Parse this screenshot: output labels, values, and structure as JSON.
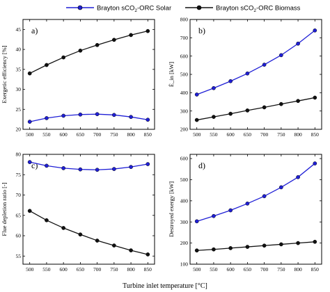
{
  "legend": {
    "solar_prefix": "Brayton sCO",
    "solar_sub": "2",
    "solar_suffix": "-ORC Solar",
    "biomass_prefix": "Brayton sCO",
    "biomass_sub": "2",
    "biomass_suffix": "-ORC Biomass"
  },
  "xlabel": "Turbine inlet temperature [°C]",
  "colors": {
    "solar": "#1f1fd6",
    "biomass": "#111111"
  },
  "chart_data": [
    {
      "type": "line",
      "panel": "a)",
      "ylabel": "Exergetic efficiency [%]",
      "x": [
        500,
        550,
        600,
        650,
        700,
        750,
        800,
        850
      ],
      "xlim": [
        480,
        870
      ],
      "xticks": [
        500,
        550,
        600,
        650,
        700,
        750,
        800,
        850
      ],
      "ylim": [
        20,
        47.5
      ],
      "yticks": [
        20,
        25,
        30,
        35,
        40,
        45
      ],
      "series": [
        {
          "name": "Brayton sCO2-ORC Solar",
          "values": [
            21.9,
            22.8,
            23.4,
            23.7,
            23.8,
            23.6,
            23.1,
            22.4
          ]
        },
        {
          "name": "Brayton sCO2-ORC Biomass",
          "values": [
            34.0,
            36.1,
            38.0,
            39.7,
            41.1,
            42.4,
            43.6,
            44.6
          ]
        }
      ]
    },
    {
      "type": "line",
      "panel": "b)",
      "ylabel": "Ė_in [kW]",
      "x": [
        500,
        550,
        600,
        650,
        700,
        750,
        800,
        850
      ],
      "xlim": [
        480,
        870
      ],
      "xticks": [
        500,
        550,
        600,
        650,
        700,
        750,
        800,
        850
      ],
      "ylim": [
        200,
        800
      ],
      "yticks": [
        200,
        300,
        400,
        500,
        600,
        700,
        800
      ],
      "series": [
        {
          "name": "Brayton sCO2-ORC Solar",
          "values": [
            390,
            425,
            463,
            505,
            553,
            605,
            668,
            740
          ]
        },
        {
          "name": "Brayton sCO2-ORC Biomass",
          "values": [
            251,
            268,
            285,
            303,
            320,
            338,
            355,
            373
          ]
        }
      ]
    },
    {
      "type": "line",
      "panel": "c)",
      "ylabel": "Flue depletion ratio [-]",
      "x": [
        500,
        550,
        600,
        650,
        700,
        750,
        800,
        850
      ],
      "xlim": [
        480,
        870
      ],
      "xticks": [
        500,
        550,
        600,
        650,
        700,
        750,
        800,
        850
      ],
      "ylim": [
        53,
        80
      ],
      "yticks": [
        55,
        60,
        65,
        70,
        75,
        80
      ],
      "series": [
        {
          "name": "Brayton sCO2-ORC Solar",
          "values": [
            78.1,
            77.2,
            76.6,
            76.3,
            76.2,
            76.4,
            76.9,
            77.6
          ]
        },
        {
          "name": "Brayton sCO2-ORC Biomass",
          "values": [
            66.1,
            63.8,
            61.9,
            60.3,
            58.8,
            57.6,
            56.4,
            55.4
          ]
        }
      ]
    },
    {
      "type": "line",
      "panel": "d)",
      "ylabel": "Destroyed exergy [kW]",
      "x": [
        500,
        550,
        600,
        650,
        700,
        750,
        800,
        850
      ],
      "xlim": [
        480,
        870
      ],
      "xticks": [
        500,
        550,
        600,
        650,
        700,
        750,
        800,
        850
      ],
      "ylim": [
        100,
        620
      ],
      "yticks": [
        100,
        200,
        300,
        400,
        500,
        600
      ],
      "series": [
        {
          "name": "Brayton sCO2-ORC Solar",
          "values": [
            303,
            328,
            355,
            387,
            422,
            464,
            512,
            577
          ]
        },
        {
          "name": "Brayton sCO2-ORC Biomass",
          "values": [
            165,
            170,
            176,
            182,
            188,
            194,
            200,
            206
          ]
        }
      ]
    }
  ]
}
